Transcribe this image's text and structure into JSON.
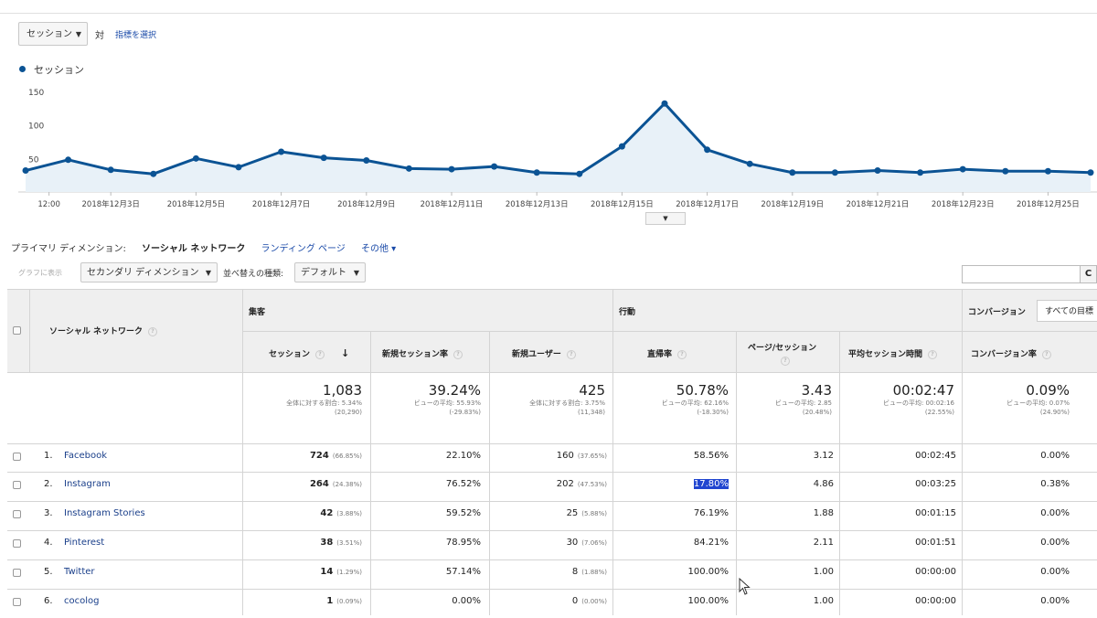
{
  "explorer": {
    "metric_select": "セッション",
    "vs_label": "対",
    "choose_metric": "指標を選択",
    "legend_label": "セッション"
  },
  "chart_data": {
    "type": "area",
    "x": [
      "2018-12-02",
      "2018-12-02",
      "2018-12-03",
      "2018-12-04",
      "2018-12-05",
      "2018-12-06",
      "2018-12-07",
      "2018-12-08",
      "2018-12-09",
      "2018-12-10",
      "2018-12-11",
      "2018-12-12",
      "2018-12-13",
      "2018-12-14",
      "2018-12-15",
      "2018-12-16",
      "2018-12-17",
      "2018-12-18",
      "2018-12-19",
      "2018-12-20",
      "2018-12-21",
      "2018-12-22",
      "2018-12-23",
      "2018-12-24",
      "2018-12-25",
      "2018-12-26"
    ],
    "values": [
      32,
      48,
      33,
      27,
      50,
      37,
      60,
      51,
      47,
      35,
      34,
      38,
      29,
      27,
      68,
      132,
      63,
      42,
      29,
      29,
      32,
      29,
      34,
      31,
      31,
      29
    ],
    "series": [
      {
        "name": "セッション"
      }
    ],
    "xtick_labels": [
      "12:00",
      "2018年12月3日",
      "2018年12月5日",
      "2018年12月7日",
      "2018年12月9日",
      "2018年12月11日",
      "2018年12月13日",
      "2018年12月15日",
      "2018年12月17日",
      "2018年12月19日",
      "2018年12月21日",
      "2018年12月23日",
      "2018年12月25日"
    ],
    "ytick_labels": [
      "150",
      "100",
      "50"
    ],
    "ylim": [
      0,
      150
    ],
    "grid": false,
    "line_color": "#0b5394",
    "fill_color": "#e8f1f8"
  },
  "dimension_bar": {
    "label": "プライマリ ディメンション:",
    "current": "ソーシャル ネットワーク",
    "alt": "ランディング ページ",
    "other": "その他 ▾"
  },
  "controls": {
    "plot_rows": "グラフに表示",
    "secondary_dimension": "セカンダリ ディメンション",
    "sort_type_label": "並べ替えの種類:",
    "sort_value": "デフォルト"
  },
  "table": {
    "dimension_header": "ソーシャル ネットワーク",
    "group_acquisition": "集客",
    "group_behavior": "行動",
    "group_conversion": "コンバージョン",
    "conversion_select": "すべての目標",
    "columns": [
      "セッション",
      "新規セッション率",
      "新規ユーザー",
      "直帰率",
      "ページ/セッション",
      "平均セッション時間",
      "コンバージョン率"
    ],
    "totals": [
      {
        "value": "1,083",
        "line1": "全体に対する割合: 5.34%",
        "line2": "(20,290)"
      },
      {
        "value": "39.24%",
        "line1": "ビューの平均: 55.93%",
        "line2": "(-29.83%)"
      },
      {
        "value": "425",
        "line1": "全体に対する割合: 3.75%",
        "line2": "(11,348)"
      },
      {
        "value": "50.78%",
        "line1": "ビューの平均: 62.16%",
        "line2": "(-18.30%)"
      },
      {
        "value": "3.43",
        "line1": "ビューの平均: 2.85",
        "line2": "(20.48%)"
      },
      {
        "value": "00:02:47",
        "line1": "ビューの平均: 00:02:16",
        "line2": "(22.55%)"
      },
      {
        "value": "0.09%",
        "line1": "ビューの平均: 0.07%",
        "line2": "(24.90%)"
      }
    ],
    "rows": [
      {
        "num": "1.",
        "name": "Facebook",
        "sessions": "724",
        "sessions_pct": "(66.85%)",
        "new_rate": "22.10%",
        "new_users": "160",
        "new_users_pct": "(37.65%)",
        "bounce": "58.56%",
        "pps": "3.12",
        "duration": "00:02:45",
        "conv": "0.00%"
      },
      {
        "num": "2.",
        "name": "Instagram",
        "sessions": "264",
        "sessions_pct": "(24.38%)",
        "new_rate": "76.52%",
        "new_users": "202",
        "new_users_pct": "(47.53%)",
        "bounce": "17.80%",
        "pps": "4.86",
        "duration": "00:03:25",
        "conv": "0.38%"
      },
      {
        "num": "3.",
        "name": "Instagram Stories",
        "sessions": "42",
        "sessions_pct": "(3.88%)",
        "new_rate": "59.52%",
        "new_users": "25",
        "new_users_pct": "(5.88%)",
        "bounce": "76.19%",
        "pps": "1.88",
        "duration": "00:01:15",
        "conv": "0.00%"
      },
      {
        "num": "4.",
        "name": "Pinterest",
        "sessions": "38",
        "sessions_pct": "(3.51%)",
        "new_rate": "78.95%",
        "new_users": "30",
        "new_users_pct": "(7.06%)",
        "bounce": "84.21%",
        "pps": "2.11",
        "duration": "00:01:51",
        "conv": "0.00%"
      },
      {
        "num": "5.",
        "name": "Twitter",
        "sessions": "14",
        "sessions_pct": "(1.29%)",
        "new_rate": "57.14%",
        "new_users": "8",
        "new_users_pct": "(1.88%)",
        "bounce": "100.00%",
        "pps": "1.00",
        "duration": "00:00:00",
        "conv": "0.00%"
      },
      {
        "num": "6.",
        "name": "cocolog",
        "sessions": "1",
        "sessions_pct": "(0.09%)",
        "new_rate": "0.00%",
        "new_users": "0",
        "new_users_pct": "(0.00%)",
        "bounce": "100.00%",
        "pps": "1.00",
        "duration": "00:00:00",
        "conv": "0.00%"
      }
    ]
  }
}
